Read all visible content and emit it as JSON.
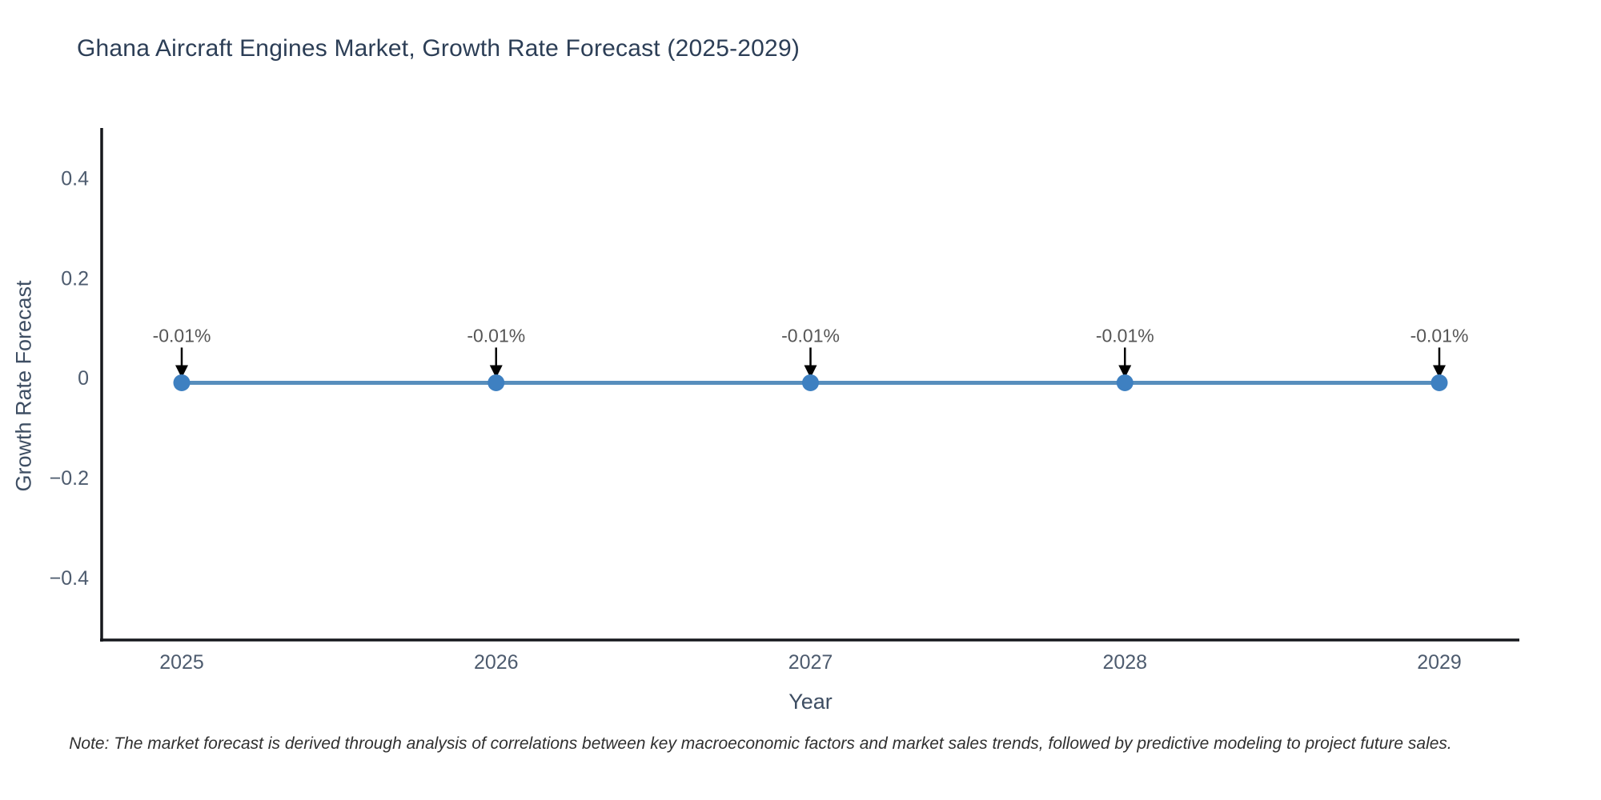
{
  "page": {
    "title": "Ghana Aircraft Engines Market, Growth Rate Forecast (2025-2029)",
    "note": "Note: The market forecast is derived through analysis of correlations between key macroeconomic factors and market sales trends, followed by predictive modeling to project future sales."
  },
  "chart_data": {
    "type": "line",
    "title": "Ghana Aircraft Engines Market, Growth Rate Forecast (2025-2029)",
    "xlabel": "Year",
    "ylabel": "Growth Rate Forecast",
    "categories": [
      "2025",
      "2026",
      "2027",
      "2028",
      "2029"
    ],
    "series": [
      {
        "name": "Growth Rate Forecast",
        "values": [
          -0.01,
          -0.01,
          -0.01,
          -0.01,
          -0.01
        ],
        "point_labels": [
          "-0.01%",
          "-0.01%",
          "-0.01%",
          "-0.01%",
          "-0.01%"
        ]
      }
    ],
    "yticks": [
      0.4,
      0.2,
      0,
      -0.2,
      -0.4
    ],
    "ytick_labels": [
      "0.4",
      "0.2",
      "0",
      "−0.2",
      "−0.4"
    ],
    "ylim": [
      -0.525,
      0.5
    ],
    "grid": false,
    "legend_position": "none",
    "annotation_style": "value label above each point with downward black arrow",
    "colors": {
      "line": "#578ebd",
      "marker": "#3e80c1",
      "axis": "#16181d",
      "arrow": "#000000",
      "annotation_text": "#565656",
      "title": "#2c3e56",
      "tick": "#4d5b6e",
      "axis_title": "#3e4e63",
      "note": "#303030",
      "background": "#ffffff"
    }
  }
}
